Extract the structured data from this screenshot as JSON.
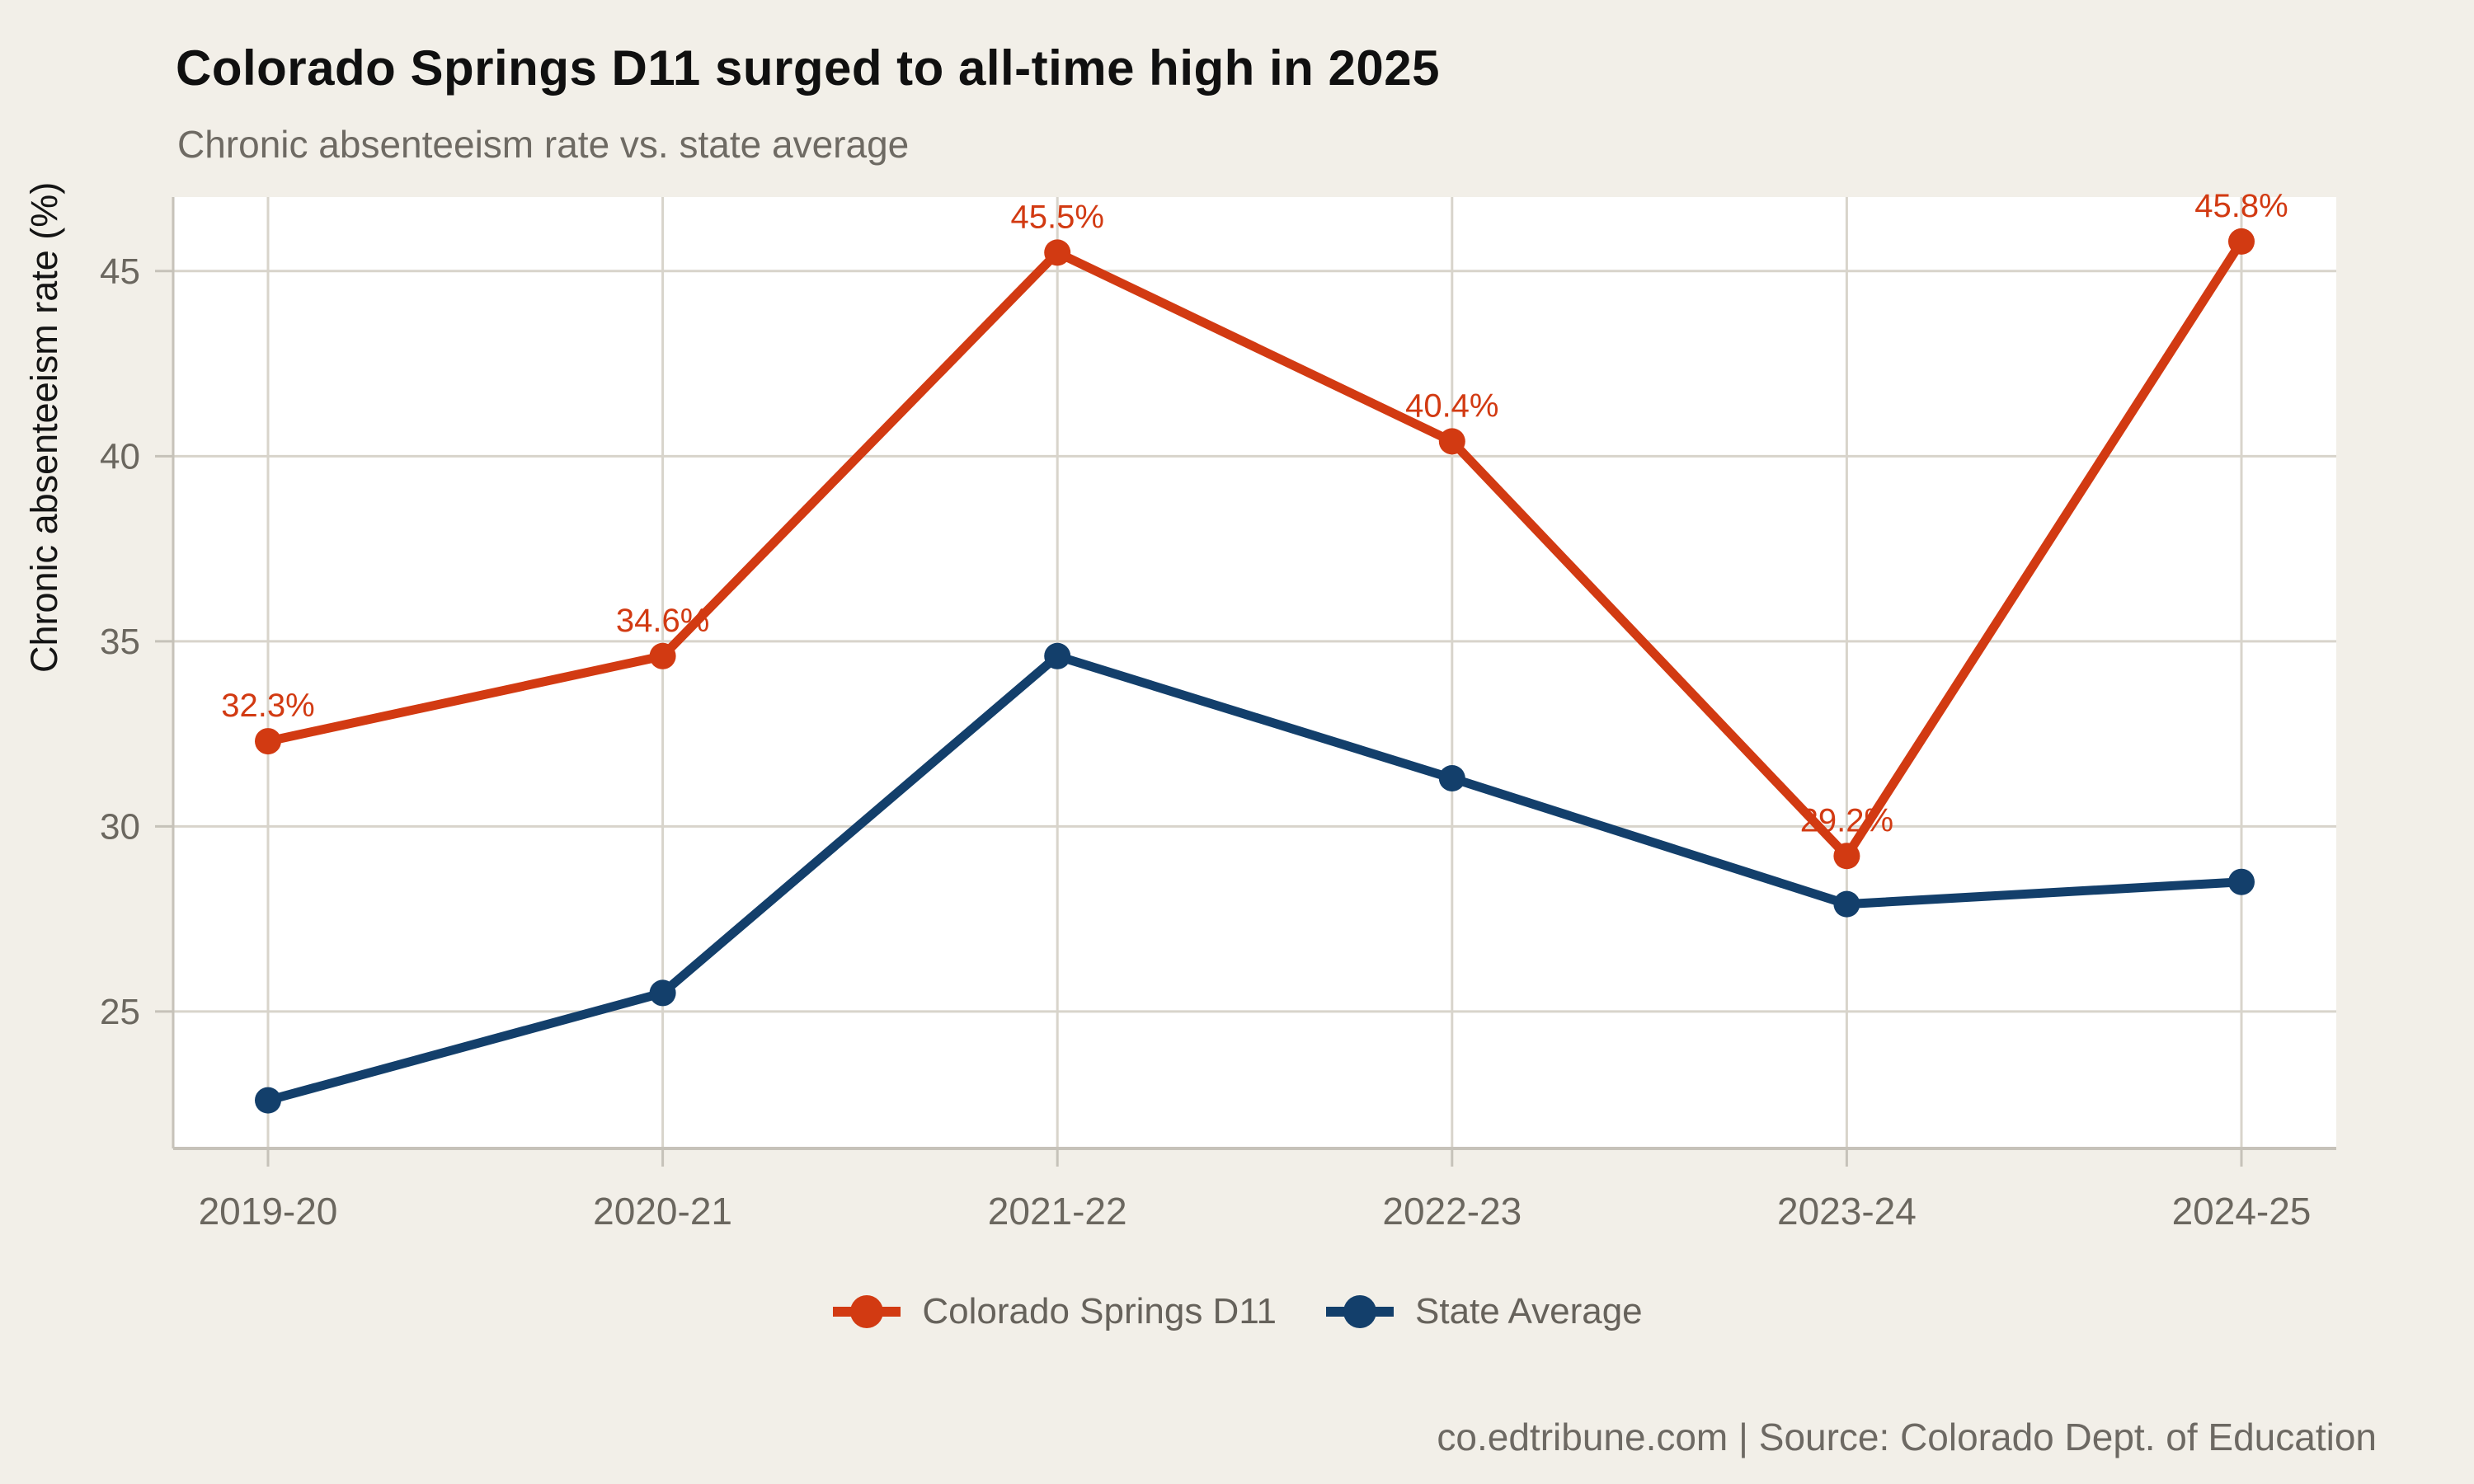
{
  "header": {
    "title": "Colorado Springs D11 surged to all-time high in 2025",
    "subtitle": "Chronic absenteeism rate vs. state average"
  },
  "footer": {
    "text": "co.edtribune.com | Source: Colorado Dept. of Education"
  },
  "legend": {
    "items": [
      {
        "label": "Colorado Springs D11",
        "color": "#d23a12"
      },
      {
        "label": "State Average",
        "color": "#133f6b"
      }
    ]
  },
  "colors": {
    "background": "#f2efe8",
    "plot_background": "#ffffff",
    "gridline": "#d8d4cb",
    "axis_line": "#c6c2b9",
    "tick_label": "#6b675f",
    "series1": "#d23a12",
    "series2": "#133f6b"
  },
  "chart_data": {
    "type": "line",
    "title": "Colorado Springs D11 surged to all-time high in 2025",
    "subtitle": "Chronic absenteeism rate vs. state average",
    "categories": [
      "2019-20",
      "2020-21",
      "2021-22",
      "2022-23",
      "2023-24",
      "2024-25"
    ],
    "series": [
      {
        "name": "Colorado Springs D11",
        "color": "#d23a12",
        "values": [
          32.3,
          34.6,
          45.5,
          40.4,
          29.2,
          45.8
        ],
        "point_labels": [
          "32.3%",
          "34.6%",
          "45.5%",
          "40.4%",
          "29.2%",
          "45.8%"
        ]
      },
      {
        "name": "State Average",
        "color": "#133f6b",
        "values": [
          22.6,
          25.5,
          34.6,
          31.3,
          27.9,
          28.5
        ],
        "point_labels": []
      }
    ],
    "xlabel": "",
    "ylabel": "Chronic absenteeism rate (%)",
    "yticks": [
      25,
      30,
      35,
      40,
      45
    ],
    "ylim": [
      21.3,
      47.0
    ],
    "grid": true,
    "legend_position": "bottom"
  }
}
